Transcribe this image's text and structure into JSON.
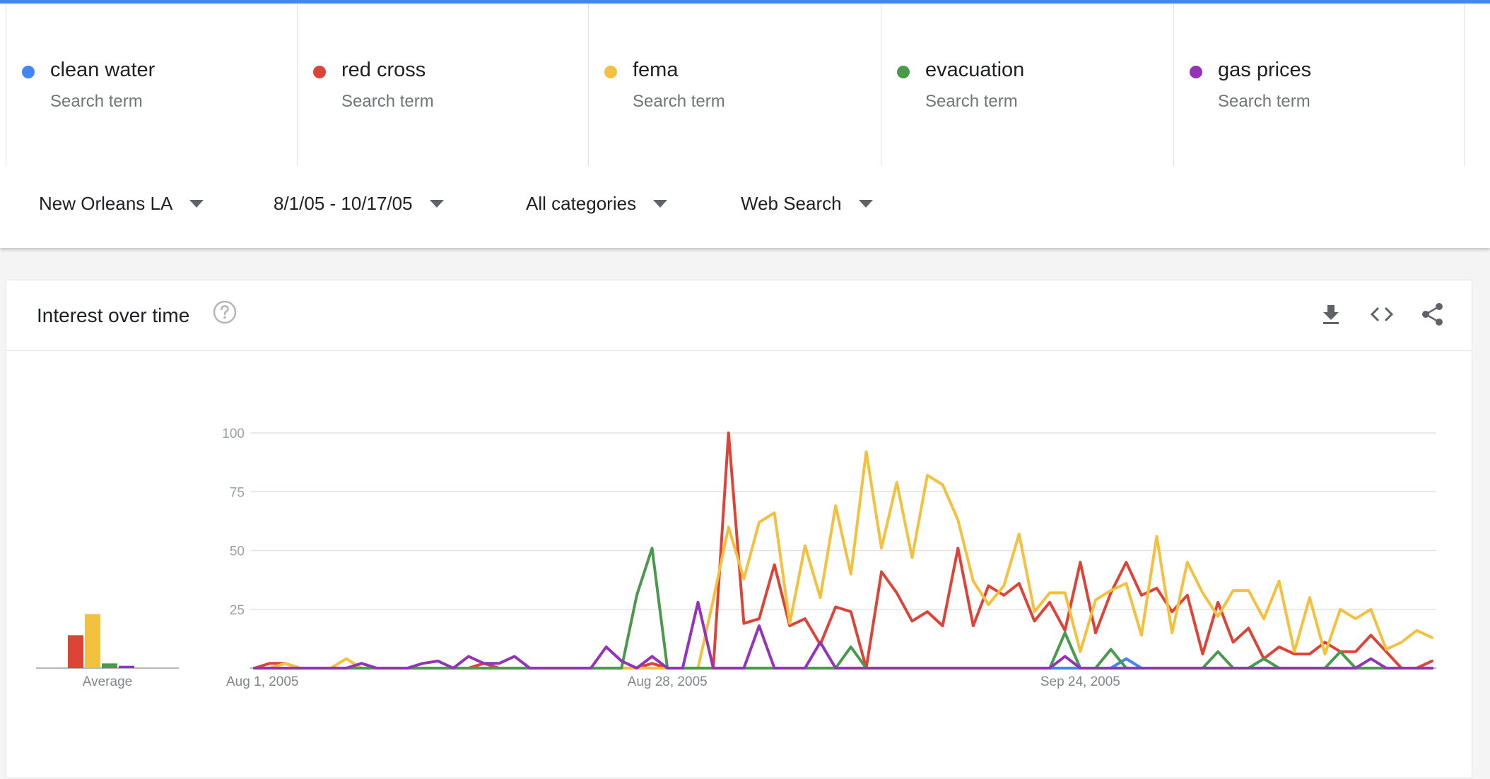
{
  "terms": [
    {
      "name": "clean water",
      "subtitle": "Search term",
      "color": "#4285f4"
    },
    {
      "name": "red cross",
      "subtitle": "Search term",
      "color": "#db4437"
    },
    {
      "name": "fema",
      "subtitle": "Search term",
      "color": "#f4c13e"
    },
    {
      "name": "evacuation",
      "subtitle": "Search term",
      "color": "#4a9a4d"
    },
    {
      "name": "gas prices",
      "subtitle": "Search term",
      "color": "#9334b8"
    }
  ],
  "filters": {
    "location": "New Orleans LA",
    "date_range": "8/1/05 - 10/17/05",
    "category": "All categories",
    "search_type": "Web Search"
  },
  "card": {
    "title": "Interest over time",
    "icons": [
      "help-icon",
      "download-icon",
      "embed-code-icon",
      "share-icon"
    ]
  },
  "chart_data": [
    {
      "type": "bar",
      "xlabel": "Average",
      "categories": [
        "clean water",
        "red cross",
        "fema",
        "evacuation",
        "gas prices"
      ],
      "values": [
        0,
        14,
        23,
        2,
        1
      ],
      "colors": [
        "#4285f4",
        "#db4437",
        "#f4c13e",
        "#4a9a4d",
        "#9334b8"
      ]
    },
    {
      "type": "line",
      "ylim": [
        0,
        100
      ],
      "y_ticks": [
        25,
        50,
        75,
        100
      ],
      "x_ticks": [
        "Aug 1, 2005",
        "Aug 28, 2005",
        "Sep 24, 2005"
      ],
      "x_tick_days": [
        0,
        27,
        54
      ],
      "x_start_label": "Aug 1, 2005",
      "x_end_label": "Oct 17, 2005",
      "grid": true,
      "series": [
        {
          "name": "clean water",
          "color": "#4285f4",
          "values": [
            0,
            0,
            0,
            0,
            0,
            0,
            0,
            0,
            0,
            0,
            0,
            0,
            0,
            0,
            0,
            0,
            0,
            0,
            0,
            0,
            0,
            0,
            0,
            0,
            0,
            0,
            0,
            0,
            0,
            0,
            0,
            0,
            0,
            0,
            0,
            0,
            0,
            0,
            0,
            0,
            0,
            0,
            0,
            0,
            0,
            0,
            0,
            0,
            0,
            0,
            0,
            0,
            0,
            0,
            0,
            0,
            0,
            4,
            0,
            0,
            0,
            0,
            0,
            0,
            0,
            0,
            0,
            0,
            0,
            0,
            0,
            0,
            0,
            0,
            0,
            0,
            0,
            0
          ]
        },
        {
          "name": "red cross",
          "color": "#db4437",
          "values": [
            0,
            2,
            2,
            0,
            0,
            0,
            0,
            0,
            0,
            0,
            0,
            0,
            0,
            0,
            0,
            2,
            0,
            0,
            0,
            0,
            0,
            0,
            0,
            0,
            0,
            0,
            2,
            0,
            0,
            0,
            0,
            100,
            19,
            21,
            44,
            18,
            21,
            10,
            26,
            24,
            0,
            41,
            32,
            20,
            24,
            18,
            51,
            18,
            35,
            31,
            36,
            20,
            28,
            16,
            45,
            15,
            32,
            45,
            31,
            34,
            24,
            31,
            6,
            28,
            11,
            17,
            4,
            9,
            6,
            6,
            11,
            7,
            7,
            14,
            7,
            0,
            0,
            3
          ]
        },
        {
          "name": "fema",
          "color": "#f4c13e",
          "values": [
            0,
            0,
            2,
            0,
            0,
            0,
            4,
            0,
            0,
            0,
            0,
            0,
            0,
            0,
            0,
            0,
            0,
            0,
            0,
            0,
            0,
            0,
            0,
            0,
            0,
            0,
            0,
            0,
            0,
            0,
            29,
            60,
            38,
            62,
            66,
            19,
            52,
            30,
            69,
            40,
            92,
            51,
            79,
            47,
            82,
            78,
            63,
            37,
            27,
            35,
            57,
            24,
            32,
            32,
            7,
            29,
            33,
            36,
            14,
            56,
            15,
            45,
            32,
            22,
            33,
            33,
            21,
            37,
            7,
            30,
            6,
            25,
            21,
            25,
            8,
            11,
            16,
            13
          ]
        },
        {
          "name": "evacuation",
          "color": "#4a9a4d",
          "values": [
            0,
            0,
            0,
            0,
            0,
            0,
            0,
            0,
            0,
            0,
            0,
            0,
            0,
            0,
            0,
            0,
            0,
            0,
            0,
            0,
            0,
            0,
            0,
            0,
            0,
            31,
            51,
            0,
            0,
            0,
            0,
            0,
            0,
            0,
            0,
            0,
            0,
            0,
            0,
            9,
            0,
            0,
            0,
            0,
            0,
            0,
            0,
            0,
            0,
            0,
            0,
            0,
            0,
            15,
            0,
            0,
            8,
            0,
            0,
            0,
            0,
            0,
            0,
            7,
            0,
            0,
            4,
            0,
            0,
            0,
            0,
            7,
            0,
            0,
            0,
            0,
            0,
            0
          ]
        },
        {
          "name": "gas prices",
          "color": "#9334b8",
          "values": [
            0,
            0,
            0,
            0,
            0,
            0,
            0,
            2,
            0,
            0,
            0,
            2,
            3,
            0,
            5,
            2,
            2,
            5,
            0,
            0,
            0,
            0,
            0,
            9,
            3,
            0,
            5,
            0,
            0,
            28,
            0,
            0,
            0,
            18,
            0,
            0,
            0,
            11,
            0,
            0,
            0,
            0,
            0,
            0,
            0,
            0,
            0,
            0,
            0,
            0,
            0,
            0,
            0,
            5,
            0,
            0,
            0,
            0,
            0,
            0,
            0,
            0,
            0,
            0,
            0,
            0,
            0,
            0,
            0,
            0,
            0,
            0,
            0,
            4,
            0,
            0,
            0,
            0
          ]
        }
      ]
    }
  ]
}
